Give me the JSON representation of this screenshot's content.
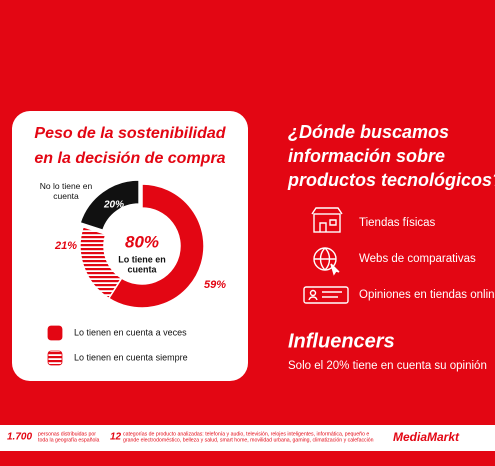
{
  "chart_data": {
    "type": "donut",
    "title_lines": [
      "Peso de la sostenibilidad",
      "en la decisión de compra"
    ],
    "categories": [
      "Lo tienen en cuenta a veces",
      "Lo tienen en cuenta siempre",
      "No lo tiene en cuenta"
    ],
    "values": [
      59,
      21,
      20
    ],
    "value_labels": [
      "59%",
      "21%",
      "20%"
    ],
    "colors": [
      "#e30613",
      "#e30613",
      "#111111"
    ],
    "fills": [
      "solid",
      "striped",
      "solid"
    ],
    "center": {
      "value": 80,
      "label": "80%",
      "text_lines": [
        "Lo tiene en",
        "cuenta"
      ]
    }
  },
  "right": {
    "title_lines": [
      "¿Dónde buscamos",
      "información sobre",
      "productos tecnológicos?"
    ],
    "items": [
      "Tiendas físicas",
      "Webs de comparativas",
      "Opiniones en tiendas online"
    ],
    "influencers_title": "Influencers",
    "influencers_text": "Solo el 20% tiene en cuenta su opinión"
  },
  "footer": {
    "stat1": "1.700",
    "stat1_lines": [
      "personas distribuidas por",
      "toda la geografía española"
    ],
    "stat2": "12",
    "stat2_lines": [
      "categorías de producto analizadas: telefonía y audio, televisión, relojes inteligentes, informática, pequeño e",
      "grande electrodoméstico, belleza y salud, smart home, movilidad urbana, gaming, climatización y calefacción"
    ],
    "logo": "MediaMarkt"
  }
}
